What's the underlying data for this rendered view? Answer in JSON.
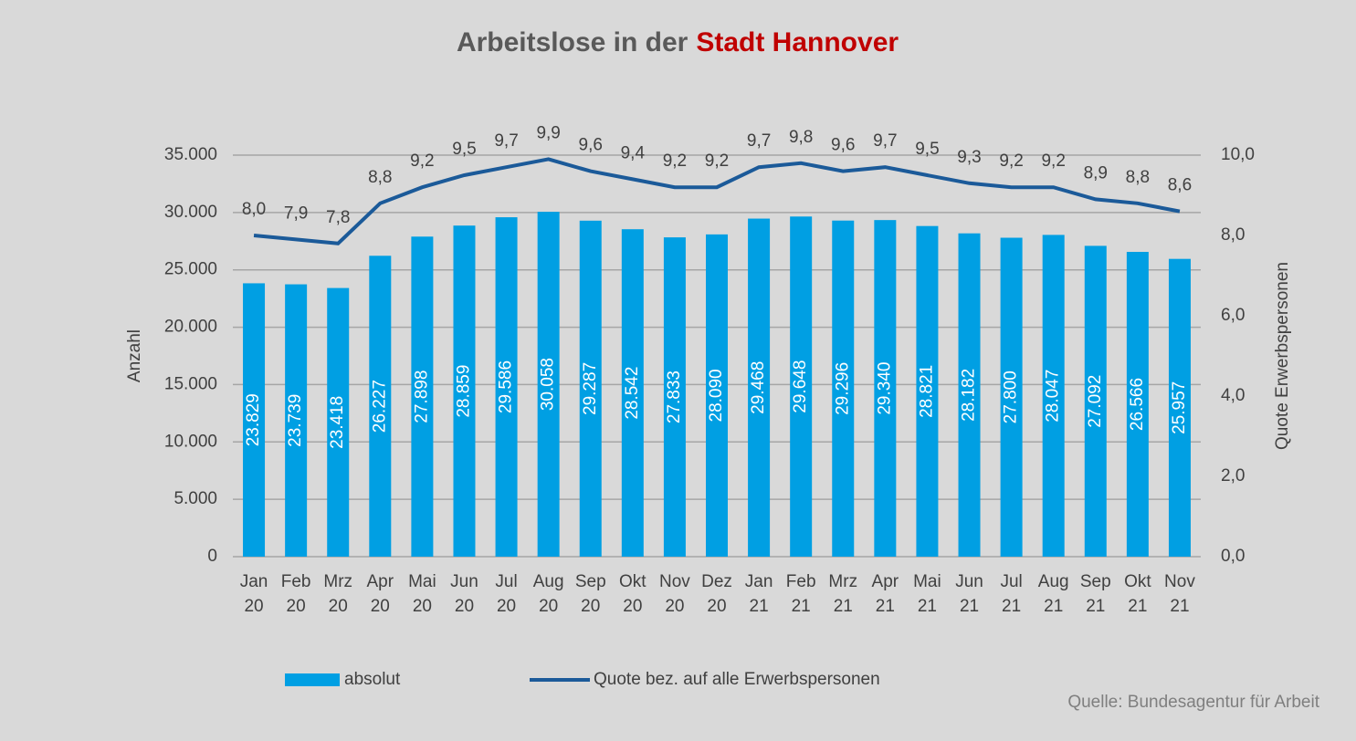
{
  "chart_data": {
    "type": "bar-line",
    "title": "Arbeitslose in der",
    "title_highlight": "Stadt Hannover",
    "y_label": "Anzahl",
    "y2_label": "Quote Erwerbspersonen",
    "source": "Quelle: Bundesagentur für Arbeit",
    "categories": [
      [
        "Jan",
        "20"
      ],
      [
        "Feb",
        "20"
      ],
      [
        "Mrz",
        "20"
      ],
      [
        "Apr",
        "20"
      ],
      [
        "Mai",
        "20"
      ],
      [
        "Jun",
        "20"
      ],
      [
        "Jul",
        "20"
      ],
      [
        "Aug",
        "20"
      ],
      [
        "Sep",
        "20"
      ],
      [
        "Okt",
        "20"
      ],
      [
        "Nov",
        "20"
      ],
      [
        "Dez",
        "20"
      ],
      [
        "Jan",
        "21"
      ],
      [
        "Feb",
        "21"
      ],
      [
        "Mrz",
        "21"
      ],
      [
        "Apr",
        "21"
      ],
      [
        "Mai",
        "21"
      ],
      [
        "Jun",
        "21"
      ],
      [
        "Jul",
        "21"
      ],
      [
        "Aug",
        "21"
      ],
      [
        "Sep",
        "21"
      ],
      [
        "Okt",
        "21"
      ],
      [
        "Nov",
        "21"
      ]
    ],
    "series": [
      {
        "name": "absolut",
        "type": "bar",
        "color": "#009fe3",
        "values": [
          23829,
          23739,
          23418,
          26227,
          27898,
          28859,
          29586,
          30058,
          29287,
          28542,
          27833,
          28090,
          29468,
          29648,
          29296,
          29340,
          28821,
          28182,
          27800,
          28047,
          27092,
          26566,
          25957
        ],
        "value_labels": [
          "23.829",
          "23.739",
          "23.418",
          "26.227",
          "27.898",
          "28.859",
          "29.586",
          "30.058",
          "29.287",
          "28.542",
          "27.833",
          "28.090",
          "29.468",
          "29.648",
          "29.296",
          "29.340",
          "28.821",
          "28.182",
          "27.800",
          "28.047",
          "27.092",
          "26.566",
          "25.957"
        ]
      },
      {
        "name": "Quote bez. auf alle Erwerbspersonen",
        "type": "line",
        "axis": "y2",
        "color": "#1b5a99",
        "values": [
          8.0,
          7.9,
          7.8,
          8.8,
          9.2,
          9.5,
          9.7,
          9.9,
          9.6,
          9.4,
          9.2,
          9.2,
          9.7,
          9.8,
          9.6,
          9.7,
          9.5,
          9.3,
          9.2,
          9.2,
          8.9,
          8.8,
          8.6
        ],
        "value_labels": [
          "8,0",
          "7,9",
          "7,8",
          "8,8",
          "9,2",
          "9,5",
          "9,7",
          "9,9",
          "9,6",
          "9,4",
          "9,2",
          "9,2",
          "9,7",
          "9,8",
          "9,6",
          "9,7",
          "9,5",
          "9,3",
          "9,2",
          "9,2",
          "8,9",
          "8,8",
          "8,6"
        ]
      }
    ],
    "ylim": [
      0,
      35000
    ],
    "yticks": [
      0,
      {
        "value": 5000,
        "label": "5.000"
      },
      {
        "value": 10000,
        "label": "10.000"
      },
      {
        "value": 15000,
        "label": "15.000"
      },
      {
        "value": 20000,
        "label": "20.000"
      },
      {
        "value": 25000,
        "label": "25.000"
      },
      {
        "value": 30000,
        "label": "30.000"
      },
      {
        "value": 35000,
        "label": "35.000"
      }
    ],
    "y2lim": [
      0,
      10
    ],
    "y2ticks": [
      {
        "value": 0,
        "label": "0,0"
      },
      {
        "value": 2,
        "label": "2,0"
      },
      {
        "value": 4,
        "label": "4,0"
      },
      {
        "value": 6,
        "label": "6,0"
      },
      {
        "value": 8,
        "label": "8,0"
      },
      {
        "value": 10,
        "label": "10,0"
      }
    ],
    "grid": true,
    "legend": "bottom"
  }
}
